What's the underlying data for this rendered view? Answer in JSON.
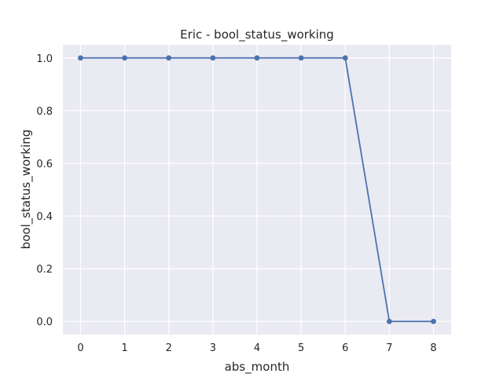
{
  "chart_data": {
    "type": "line",
    "title": "Eric - bool_status_working",
    "xlabel": "abs_month",
    "ylabel": "bool_status_working",
    "x": [
      0,
      1,
      2,
      3,
      4,
      5,
      6,
      7,
      8
    ],
    "series": [
      {
        "values": [
          1.0,
          1.0,
          1.0,
          1.0,
          1.0,
          1.0,
          1.0,
          0.0,
          0.0
        ]
      }
    ],
    "xlim": [
      -0.4,
      8.4
    ],
    "ylim": [
      -0.05,
      1.05
    ],
    "xticks": [
      "0",
      "1",
      "2",
      "3",
      "4",
      "5",
      "6",
      "7",
      "8"
    ],
    "yticks": [
      "0.0",
      "0.2",
      "0.4",
      "0.6",
      "0.8",
      "1.0"
    ],
    "grid": true,
    "colors": {
      "background": "#eaeaf2",
      "grid": "#ffffff",
      "line": "#4c72b0"
    }
  }
}
